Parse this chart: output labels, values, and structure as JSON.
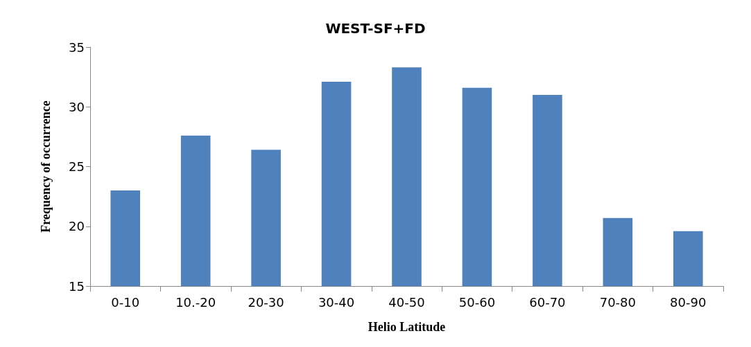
{
  "chart_data": {
    "type": "bar",
    "title": "WEST-SF+FD",
    "xlabel": "Helio Latitude",
    "ylabel": "Frequency of occurrence",
    "categories": [
      "0-10",
      "10.-20",
      "20-30",
      "30-40",
      "40-50",
      "50-60",
      "60-70",
      "70-80",
      "80-90"
    ],
    "values": [
      23,
      27.6,
      26.4,
      32.1,
      33.3,
      31.6,
      31,
      20.7,
      19.6
    ],
    "color": "#4f81bd",
    "ylim": [
      15,
      35
    ],
    "yticks": [
      15,
      20,
      25,
      30,
      35
    ],
    "grid": false
  }
}
